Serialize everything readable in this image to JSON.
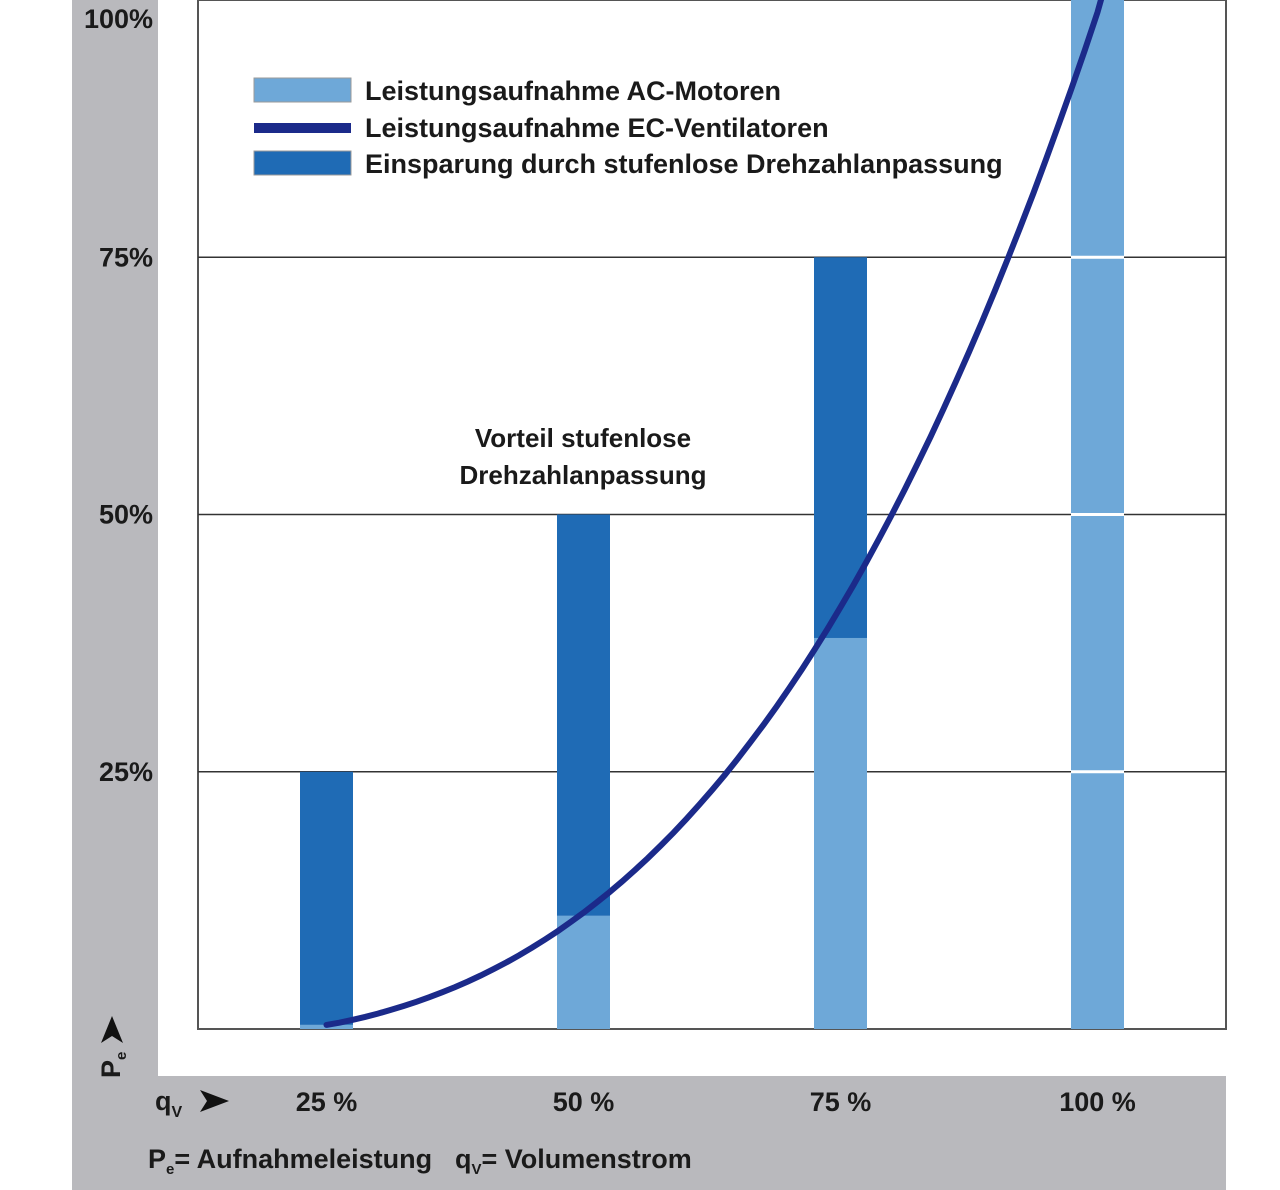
{
  "chart_data": {
    "type": "bar",
    "categories": [
      "25 %",
      "50 %",
      "75 %",
      "100 %"
    ],
    "x_unit_label": "q",
    "x_unit_sub": "V",
    "y_unit_label": "P",
    "y_unit_sub": "e",
    "yticks": [
      "25%",
      "50%",
      "75%",
      "100%"
    ],
    "ylim": [
      0,
      100
    ],
    "grid": true,
    "series": [
      {
        "name": "Leistungsaufnahme AC-Motoren",
        "kind": "bar",
        "color": "#6ea8d8",
        "values": [
          25,
          50,
          75,
          100
        ]
      },
      {
        "name": "Leistungsaufnahme EC-Ventilatoren",
        "kind": "curve",
        "color": "#1b2a8a",
        "x": [
          25,
          50,
          75,
          100
        ],
        "values": [
          0.4,
          11,
          38,
          100
        ]
      },
      {
        "name": "Einsparung durch stufenlose Drehzahlanpassung",
        "kind": "bar",
        "color": "#1f6bb5",
        "values": [
          24.6,
          39,
          37,
          0
        ]
      }
    ],
    "annotation": {
      "line1": "Vorteil stufenlose",
      "line2": "Drehzahlanpassung"
    },
    "footer": {
      "pe_symbol": "P",
      "pe_sub": "e",
      "pe_def": "= Aufnahmeleistung",
      "qv_symbol": "q",
      "qv_sub": "V",
      "qv_def": "= Volumenstrom"
    }
  }
}
